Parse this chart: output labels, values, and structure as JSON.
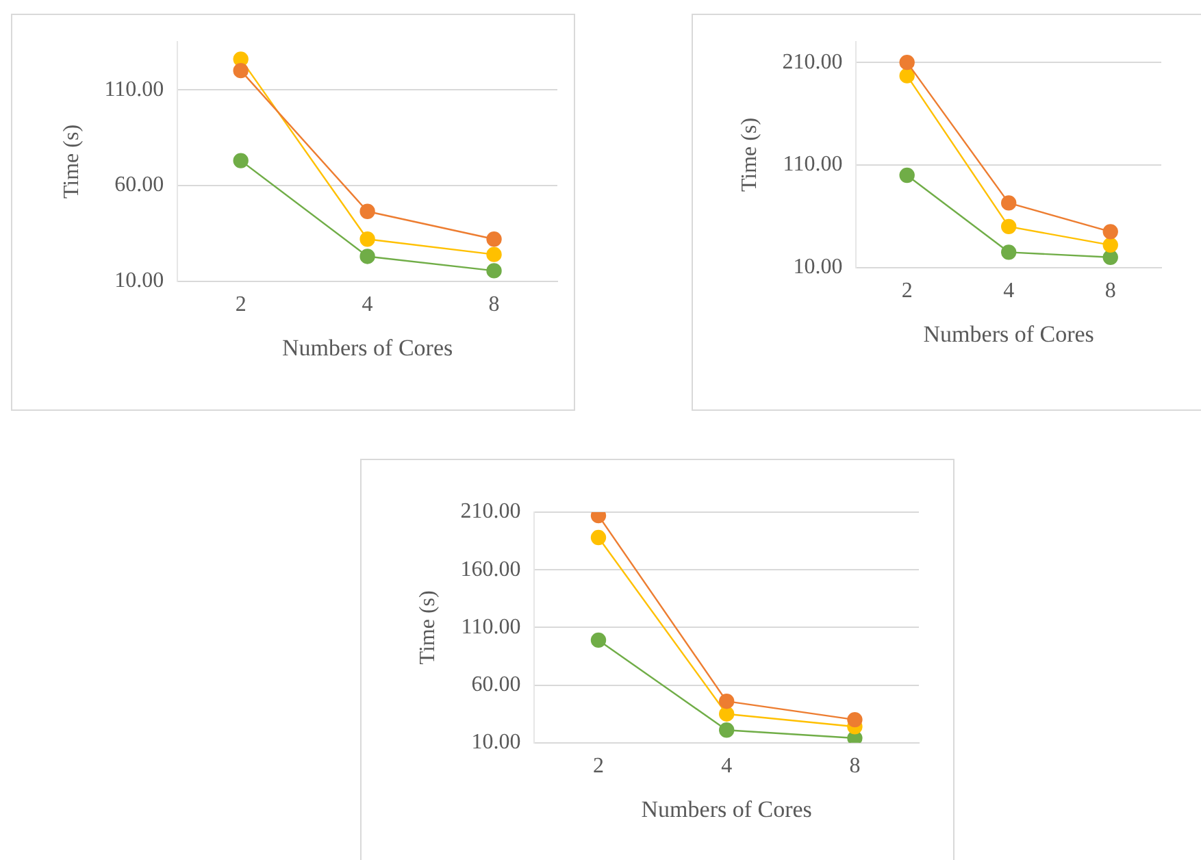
{
  "chart_data": [
    {
      "type": "line",
      "xlabel": "Numbers of Cores",
      "ylabel": "Time (s)",
      "categories": [
        "2",
        "4",
        "8"
      ],
      "ylim": [
        10,
        135
      ],
      "yticks": [
        {
          "value": 10,
          "label": "10.00"
        },
        {
          "value": 60,
          "label": "60.00"
        },
        {
          "value": 110,
          "label": "110.00"
        }
      ],
      "grid": "y",
      "legend": false,
      "marker": "circle",
      "line_style": "solid",
      "series": [
        {
          "color": "#ed7d31",
          "values": [
            120,
            46.5,
            32
          ]
        },
        {
          "color": "#ffc000",
          "values": [
            126,
            32,
            24
          ]
        },
        {
          "color": "#70ad47",
          "values": [
            73,
            23,
            15.5
          ]
        }
      ]
    },
    {
      "type": "line",
      "xlabel": "Numbers of Cores",
      "ylabel": "Time (s)",
      "categories": [
        "2",
        "4",
        "8"
      ],
      "ylim": [
        10,
        230
      ],
      "yticks": [
        {
          "value": 10,
          "label": "10.00"
        },
        {
          "value": 110,
          "label": "110.00"
        },
        {
          "value": 210,
          "label": "210.00"
        }
      ],
      "grid": "y",
      "legend": false,
      "marker": "circle",
      "line_style": "solid",
      "series": [
        {
          "color": "#ed7d31",
          "values": [
            210,
            73,
            45
          ]
        },
        {
          "color": "#ffc000",
          "values": [
            197,
            50,
            32
          ]
        },
        {
          "color": "#70ad47",
          "values": [
            100,
            25,
            20
          ]
        }
      ]
    },
    {
      "type": "line",
      "xlabel": "Numbers of Cores",
      "ylabel": "Time (s)",
      "categories": [
        "2",
        "4",
        "8"
      ],
      "ylim": [
        10,
        210
      ],
      "yticks": [
        {
          "value": 10,
          "label": "10.00"
        },
        {
          "value": 60,
          "label": "60.00"
        },
        {
          "value": 110,
          "label": "110.00"
        },
        {
          "value": 160,
          "label": "160.00"
        },
        {
          "value": 210,
          "label": "210.00"
        }
      ],
      "grid": "y",
      "legend": false,
      "marker": "circle",
      "line_style": "solid",
      "series": [
        {
          "color": "#ed7d31",
          "values": [
            207,
            46,
            30
          ]
        },
        {
          "color": "#ffc000",
          "values": [
            188,
            35,
            24
          ]
        },
        {
          "color": "#70ad47",
          "values": [
            99,
            21,
            14
          ]
        }
      ]
    }
  ]
}
